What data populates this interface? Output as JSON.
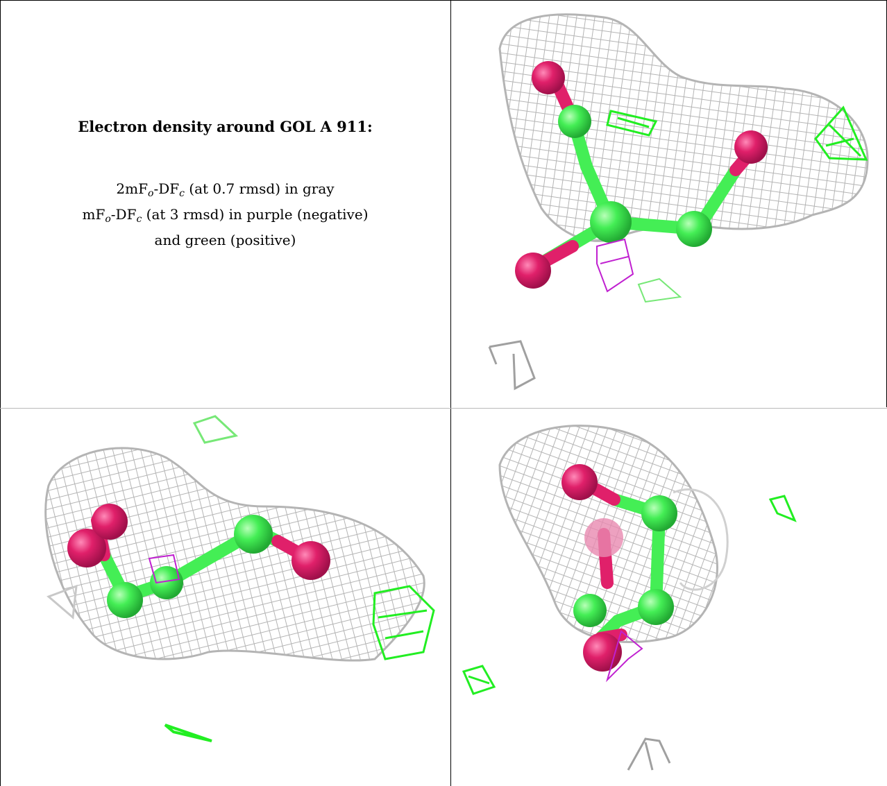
{
  "caption": {
    "title": "Electron density around GOL A 911:",
    "line1_pre": "2mF",
    "line1_sub1": "o",
    "line1_mid": "-DF",
    "line1_sub2": "c",
    "line1_post": " (at 0.7 rmsd) in gray",
    "line2_pre": "mF",
    "line2_sub1": "o",
    "line2_mid": "-DF",
    "line2_sub2": "c",
    "line2_post": " (at 3 rmsd) in purple (negative)",
    "line3": "and green (positive)"
  },
  "colors": {
    "gray_mesh": "#b4b4b4",
    "purple_mesh": "#c020d0",
    "green_mesh": "#22ee22",
    "carbon_green": "#44ee55",
    "oxygen_magenta": "#e0206a",
    "border": "#000000"
  },
  "panels": [
    {
      "id": "top-right",
      "view": "front"
    },
    {
      "id": "bottom-left",
      "view": "side"
    },
    {
      "id": "bottom-right",
      "view": "end-on"
    }
  ]
}
